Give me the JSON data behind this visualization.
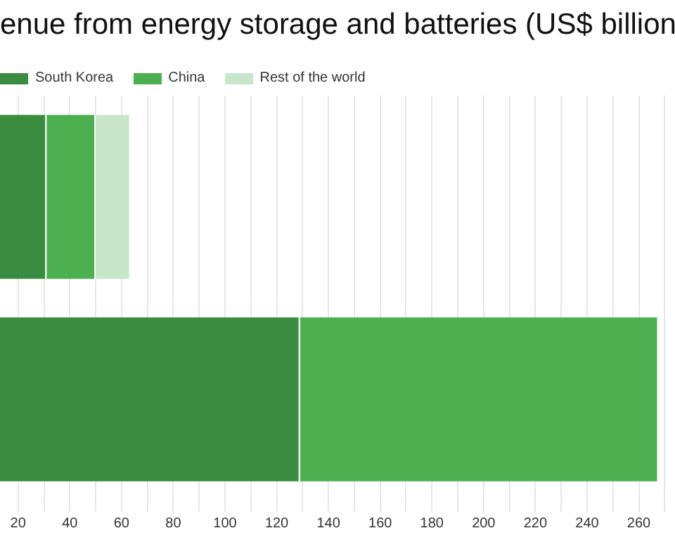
{
  "chart_data": {
    "type": "bar",
    "orientation": "horizontal",
    "stacked": true,
    "title": "enue from energy storage and batteries (US$ billion",
    "categories": [
      null,
      null
    ],
    "series": [
      {
        "name": "South Korea",
        "color": "#3a8d3f",
        "values": [
          31,
          129
        ]
      },
      {
        "name": "China",
        "color": "#4caf50",
        "values": [
          19,
          138.6
        ]
      },
      {
        "name": "Rest of the world",
        "color": "#c8e6c9",
        "values": [
          13.5,
          null
        ]
      }
    ],
    "xlim": [
      13,
      274
    ],
    "xticks": [
      20,
      {
        "value": 30,
        "label": null
      },
      40,
      {
        "value": 50,
        "label": null
      },
      60,
      {
        "value": 70,
        "label": null
      },
      80,
      {
        "value": 90,
        "label": null
      },
      100,
      {
        "value": 110,
        "label": null
      },
      120,
      {
        "value": 130,
        "label": null
      },
      140,
      {
        "value": 150,
        "label": null
      },
      160,
      {
        "value": 170,
        "label": null
      },
      180,
      {
        "value": 190,
        "label": null
      },
      200,
      {
        "value": 210,
        "label": null
      },
      220,
      {
        "value": 230,
        "label": null
      },
      240,
      {
        "value": 250,
        "label": null
      },
      260,
      {
        "value": 270,
        "label": null
      }
    ],
    "grid": "x",
    "legend": "top left",
    "tick_labels": "x"
  }
}
